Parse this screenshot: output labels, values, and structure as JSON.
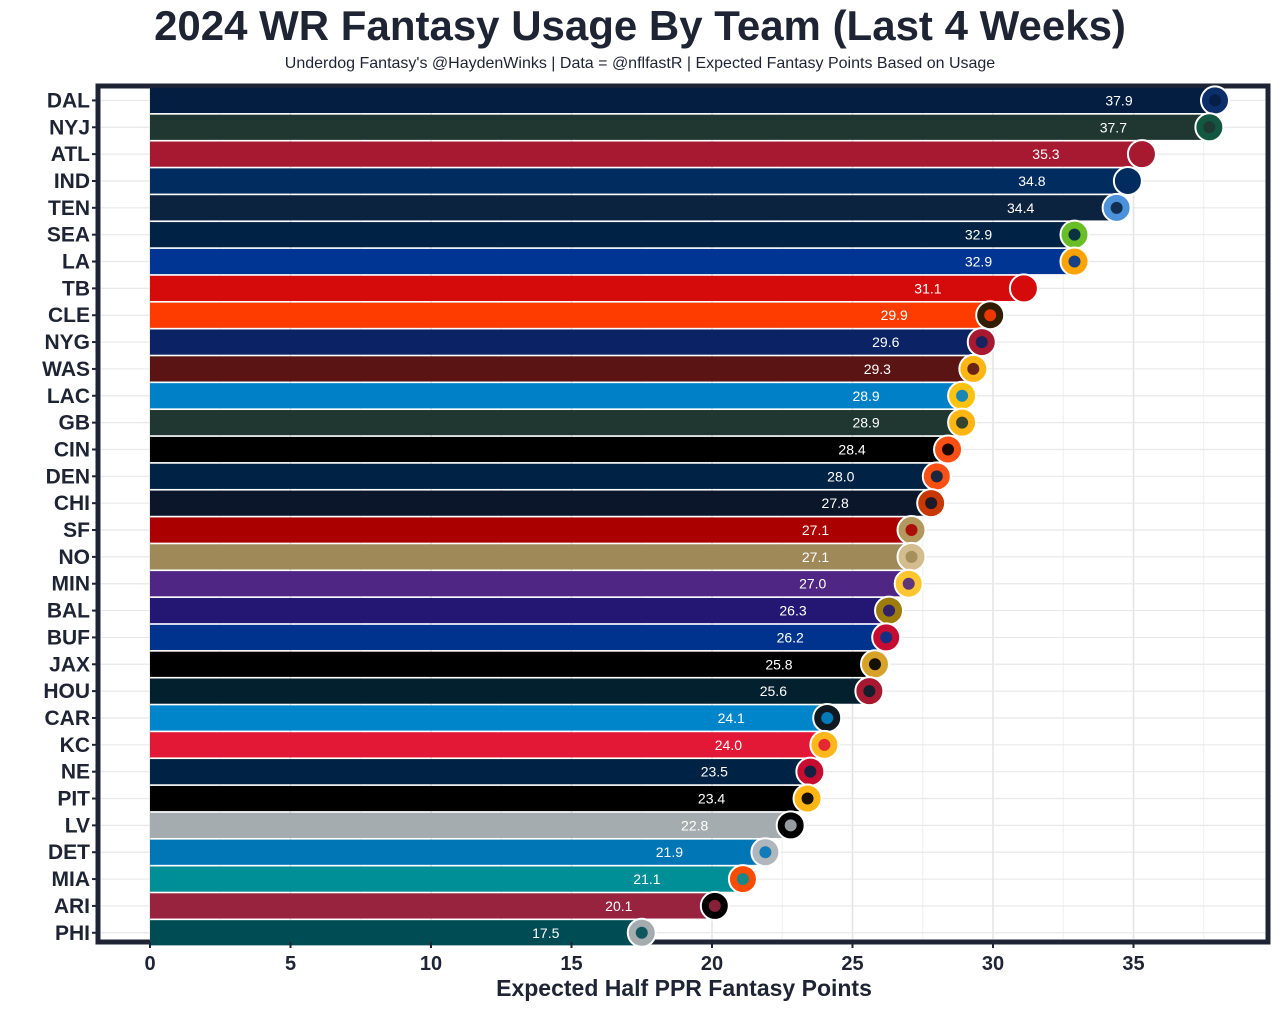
{
  "chart_data": {
    "type": "bar",
    "orientation": "horizontal",
    "title": "2024 WR Fantasy Usage By Team (Last 4 Weeks)",
    "subtitle": "Underdog Fantasy's @HaydenWinks | Data = @nflfastR | Expected Fantasy Points Based on Usage",
    "xlabel": "Expected Half PPR Fantasy Points",
    "ylabel": "",
    "xlim": [
      0,
      39
    ],
    "xticks": [
      0,
      5,
      10,
      15,
      20,
      25,
      30,
      35
    ],
    "grid": true,
    "categories": [
      "DAL",
      "NYJ",
      "ATL",
      "IND",
      "TEN",
      "SEA",
      "LA",
      "TB",
      "CLE",
      "NYG",
      "WAS",
      "LAC",
      "GB",
      "CIN",
      "DEN",
      "CHI",
      "SF",
      "NO",
      "MIN",
      "BAL",
      "BUF",
      "JAX",
      "HOU",
      "CAR",
      "KC",
      "NE",
      "PIT",
      "LV",
      "DET",
      "MIA",
      "ARI",
      "PHI"
    ],
    "values": [
      37.9,
      37.7,
      35.3,
      34.8,
      34.4,
      32.9,
      32.9,
      31.1,
      29.9,
      29.6,
      29.3,
      28.9,
      28.9,
      28.4,
      28.0,
      27.8,
      27.1,
      27.1,
      27.0,
      26.3,
      26.2,
      25.8,
      25.6,
      24.1,
      24.0,
      23.5,
      23.4,
      22.8,
      21.9,
      21.1,
      20.1,
      17.5
    ],
    "value_labels": [
      "37.9",
      "37.7",
      "35.3",
      "34.8",
      "34.4",
      "32.9",
      "32.9",
      "31.1",
      "29.9",
      "29.6",
      "29.3",
      "28.9",
      "28.9",
      "28.4",
      "28.0",
      "27.8",
      "27.1",
      "27.1",
      "27.0",
      "26.3",
      "26.2",
      "25.8",
      "25.6",
      "24.1",
      "24.0",
      "23.5",
      "23.4",
      "22.8",
      "21.9",
      "21.1",
      "20.1",
      "17.5"
    ],
    "colors": [
      "#041E42",
      "#203731",
      "#A71930",
      "#002C5F",
      "#0C2340",
      "#002244",
      "#003594",
      "#D50A0A",
      "#FF3C00",
      "#0B2265",
      "#5A1414",
      "#0080C6",
      "#203731",
      "#000000",
      "#002244",
      "#0B162A",
      "#AA0000",
      "#9F8958",
      "#4F2683",
      "#241773",
      "#00338D",
      "#000000",
      "#03202F",
      "#0085CA",
      "#E31837",
      "#002244",
      "#000000",
      "#A5ACAF",
      "#0076B6",
      "#008E97",
      "#97233F",
      "#004C54"
    ],
    "logo_colors": [
      "#0C2E6B",
      "#125740",
      "#A71930",
      "#002C5F",
      "#4B92DB",
      "#69BE28",
      "#FFA300",
      "#D50A0A",
      "#311D00",
      "#A71930",
      "#FFB612",
      "#FFC20E",
      "#FFB612",
      "#FB4F14",
      "#FB4F14",
      "#C83803",
      "#B3995D",
      "#D3BC8D",
      "#FFC62F",
      "#9E7C0C",
      "#C60C30",
      "#D7A22A",
      "#A71930",
      "#101820",
      "#FFB81C",
      "#C60C30",
      "#FFB612",
      "#000000",
      "#B0B7BC",
      "#FC4C02",
      "#000000",
      "#A5ACAF"
    ]
  }
}
